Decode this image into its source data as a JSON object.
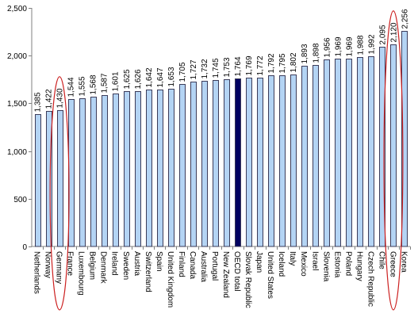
{
  "chart_data": {
    "type": "bar",
    "title": "",
    "xlabel": "",
    "ylabel": "",
    "ylim": [
      0,
      2500
    ],
    "yticks": [
      0,
      500,
      1000,
      1500,
      2000,
      2500
    ],
    "ytick_labels": [
      "0",
      "500",
      "1,000",
      "1,500",
      "2,000",
      "2,500"
    ],
    "grid": false,
    "legend": "none",
    "categories": [
      "Netherlands",
      "Norway",
      "Germany",
      "France",
      "Luxembourg",
      "Belgium",
      "Denmark",
      "Ireland",
      "Sweden",
      "Austria",
      "Switzerland",
      "Spain",
      "United Kingdom",
      "Finland",
      "Canada",
      "Australia",
      "Portugal",
      "New Zealand",
      "OECD total",
      "Slovak Republic",
      "Japan",
      "United States",
      "Iceland",
      "Italy",
      "Mexico",
      "Israel",
      "Slovenia",
      "Estonia",
      "Poland",
      "Hungary",
      "Czech Republic",
      "Chile",
      "Greece",
      "Korea"
    ],
    "values": [
      1385,
      1422,
      1430,
      1544,
      1555,
      1568,
      1587,
      1601,
      1625,
      1626,
      1642,
      1647,
      1653,
      1705,
      1727,
      1732,
      1745,
      1753,
      1764,
      1769,
      1772,
      1792,
      1795,
      1802,
      1893,
      1898,
      1956,
      1969,
      1969,
      1988,
      1992,
      2095,
      2120,
      2256
    ],
    "value_labels": [
      "1,385",
      "1,422",
      "1,430",
      "1,544",
      "1,555",
      "1,568",
      "1,587",
      "1,601",
      "1,625",
      "1,626",
      "1,642",
      "1,647",
      "1,653",
      "1,705",
      "1,727",
      "1,732",
      "1,745",
      "1,753",
      "1,764",
      "1,769",
      "1,772",
      "1,792",
      "1,795",
      "1,802",
      "1,893",
      "1,898",
      "1,956",
      "1,969",
      "1,969",
      "1,988",
      "1,992",
      "2,095",
      "2,120",
      "2,256"
    ],
    "highlight_category": "OECD total",
    "circled_categories": [
      "Germany",
      "Greece"
    ]
  },
  "colors": {
    "bar_fill": "#b4d4f4",
    "bar_stroke": "#3c3c5a",
    "highlight_fill": "#000060",
    "axis": "#808080",
    "circle": "#cc2020"
  }
}
